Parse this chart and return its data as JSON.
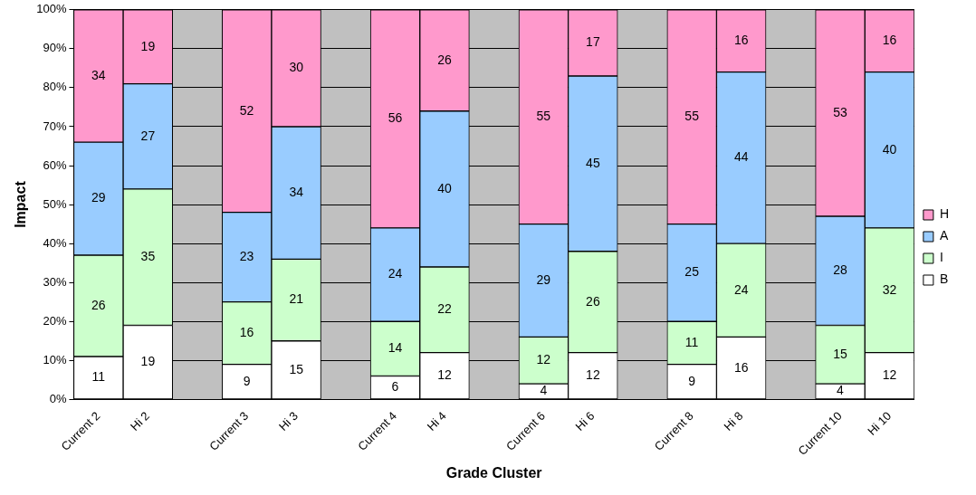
{
  "chart_data": {
    "type": "bar",
    "stacked": true,
    "xlabel": "Grade Cluster",
    "ylabel": "Impact",
    "categories": [
      "Current 2",
      "Hi 2",
      null,
      "Current 3",
      "Hi 3",
      null,
      "Current 4",
      "Hi 4",
      null,
      "Current 6",
      "Hi 6",
      null,
      "Current 8",
      "Hi 8",
      null,
      "Current 10",
      "Hi 10"
    ],
    "series": [
      {
        "name": "B",
        "color": "#ffffff",
        "values": [
          11,
          19,
          null,
          9,
          15,
          null,
          6,
          12,
          null,
          4,
          12,
          null,
          9,
          16,
          null,
          4,
          12
        ]
      },
      {
        "name": "I",
        "color": "#ccffcc",
        "values": [
          26,
          35,
          null,
          16,
          21,
          null,
          14,
          22,
          null,
          12,
          26,
          null,
          11,
          24,
          null,
          15,
          32
        ]
      },
      {
        "name": "A",
        "color": "#99ccff",
        "values": [
          29,
          27,
          null,
          23,
          34,
          null,
          24,
          40,
          null,
          29,
          45,
          null,
          25,
          44,
          null,
          28,
          40
        ]
      },
      {
        "name": "H",
        "color": "#ff99cc",
        "values": [
          34,
          19,
          null,
          52,
          30,
          null,
          56,
          26,
          null,
          55,
          17,
          null,
          55,
          16,
          null,
          53,
          16
        ]
      }
    ],
    "ylim": [
      0,
      100
    ],
    "yticks": [
      {
        "value": 0,
        "label": "0%"
      },
      {
        "value": 10,
        "label": "10%"
      },
      {
        "value": 20,
        "label": "20%"
      },
      {
        "value": 30,
        "label": "30%"
      },
      {
        "value": 40,
        "label": "40%"
      },
      {
        "value": 50,
        "label": "50%"
      },
      {
        "value": 60,
        "label": "60%"
      },
      {
        "value": 70,
        "label": "70%"
      },
      {
        "value": 80,
        "label": "80%"
      },
      {
        "value": 90,
        "label": "90%"
      },
      {
        "value": 100,
        "label": "100%"
      }
    ],
    "grid": "y",
    "legend": "right",
    "data_labels": true
  }
}
